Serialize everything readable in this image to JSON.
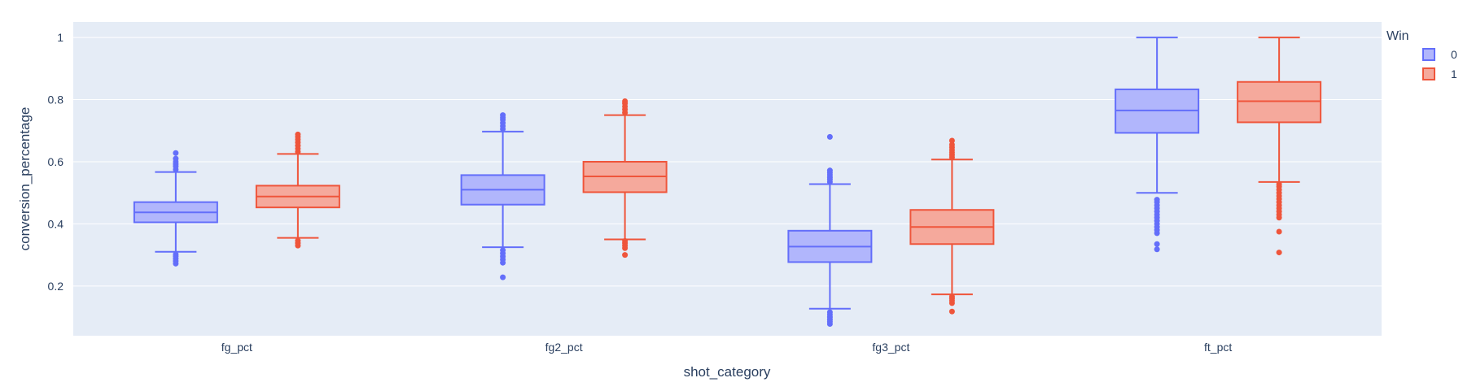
{
  "chart_data": {
    "type": "box",
    "categories": [
      "fg_pct",
      "fg2_pct",
      "fg3_pct",
      "ft_pct"
    ],
    "xlabel": "shot_category",
    "ylabel": "conversion_percentage",
    "yticks": [
      0.2,
      0.4,
      0.6,
      0.8,
      1
    ],
    "ytick_labels": [
      "0.2",
      "0.4",
      "0.6",
      "0.8",
      "1"
    ],
    "ylim": [
      0.04,
      1.05
    ],
    "grid": true,
    "legend": {
      "title": "Win",
      "placement": "top-right"
    },
    "series": [
      {
        "name": "0",
        "color": "#636efa",
        "fill": "#b1b6fc",
        "boxes": [
          {
            "category": "fg_pct",
            "lower_fence": 0.31,
            "q1": 0.405,
            "median": 0.437,
            "q3": 0.47,
            "upper_fence": 0.567,
            "outliers": [
              0.272,
              0.28,
              0.288,
              0.296,
              0.302,
              0.575,
              0.585,
              0.592,
              0.6,
              0.61,
              0.628
            ]
          },
          {
            "category": "fg2_pct",
            "lower_fence": 0.325,
            "q1": 0.462,
            "median": 0.51,
            "q3": 0.557,
            "upper_fence": 0.697,
            "outliers": [
              0.228,
              0.275,
              0.285,
              0.295,
              0.305,
              0.315,
              0.705,
              0.715,
              0.725,
              0.735,
              0.742,
              0.75
            ]
          },
          {
            "category": "fg3_pct",
            "lower_fence": 0.127,
            "q1": 0.277,
            "median": 0.327,
            "q3": 0.378,
            "upper_fence": 0.528,
            "outliers": [
              0.078,
              0.085,
              0.092,
              0.1,
              0.108,
              0.116,
              0.535,
              0.543,
              0.55,
              0.558,
              0.565,
              0.572,
              0.68
            ]
          },
          {
            "category": "ft_pct",
            "lower_fence": 0.5,
            "q1": 0.693,
            "median": 0.765,
            "q3": 0.833,
            "upper_fence": 1.0,
            "outliers": [
              0.318,
              0.335,
              0.37,
              0.38,
              0.39,
              0.4,
              0.41,
              0.42,
              0.43,
              0.44,
              0.45,
              0.46,
              0.47,
              0.478
            ]
          }
        ]
      },
      {
        "name": "1",
        "color": "#ef553b",
        "fill": "#f5a99c",
        "boxes": [
          {
            "category": "fg_pct",
            "lower_fence": 0.355,
            "q1": 0.453,
            "median": 0.488,
            "q3": 0.523,
            "upper_fence": 0.625,
            "outliers": [
              0.33,
              0.338,
              0.346,
              0.632,
              0.642,
              0.652,
              0.662,
              0.672,
              0.68,
              0.688
            ]
          },
          {
            "category": "fg2_pct",
            "lower_fence": 0.35,
            "q1": 0.502,
            "median": 0.553,
            "q3": 0.6,
            "upper_fence": 0.75,
            "outliers": [
              0.3,
              0.322,
              0.33,
              0.338,
              0.345,
              0.758,
              0.768,
              0.778,
              0.788,
              0.795
            ]
          },
          {
            "category": "fg3_pct",
            "lower_fence": 0.173,
            "q1": 0.335,
            "median": 0.39,
            "q3": 0.445,
            "upper_fence": 0.607,
            "outliers": [
              0.118,
              0.145,
              0.153,
              0.16,
              0.166,
              0.614,
              0.622,
              0.63,
              0.638,
              0.646,
              0.655,
              0.668
            ]
          },
          {
            "category": "ft_pct",
            "lower_fence": 0.535,
            "q1": 0.727,
            "median": 0.795,
            "q3": 0.857,
            "upper_fence": 1.0,
            "outliers": [
              0.308,
              0.375,
              0.42,
              0.43,
              0.44,
              0.45,
              0.46,
              0.47,
              0.48,
              0.49,
              0.5,
              0.51,
              0.52,
              0.528
            ]
          }
        ]
      }
    ]
  }
}
